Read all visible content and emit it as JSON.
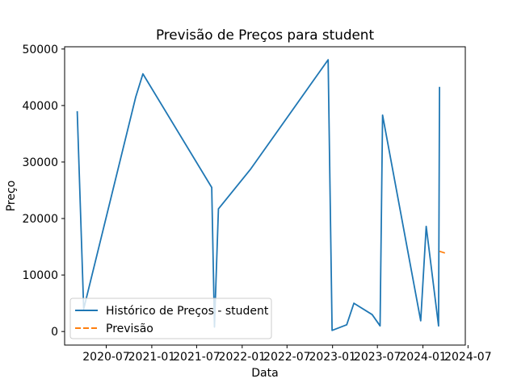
{
  "chart_data": {
    "type": "line",
    "title": "Previsão de Preços para student",
    "xlabel": "Data",
    "ylabel": "Preço",
    "x_axis_type": "date",
    "xlim": [
      "2020-01-15",
      "2024-06-20"
    ],
    "ylim": [
      -2400,
      50400
    ],
    "x_ticks": [
      "2020-07-01",
      "2021-01-01",
      "2021-07-01",
      "2022-01-01",
      "2022-07-01",
      "2023-01-01",
      "2023-07-01",
      "2024-01-01",
      "2024-07-01"
    ],
    "x_tick_labels": [
      "2020-07",
      "2021-01",
      "2021-07",
      "2022-01",
      "2022-07",
      "2023-01",
      "2023-07",
      "2024-01",
      "2024-07"
    ],
    "y_ticks": [
      0,
      10000,
      20000,
      30000,
      40000,
      50000
    ],
    "y_tick_labels": [
      "0",
      "10000",
      "20000",
      "30000",
      "40000",
      "50000"
    ],
    "grid": false,
    "legend_position": "lower-left",
    "series": [
      {
        "name": "Histórico de Preços - student",
        "color": "#1f77b4",
        "style": "solid",
        "x": [
          "2020-03-06",
          "2020-04-01",
          "2020-10-28",
          "2020-11-26",
          "2021-08-31",
          "2021-09-11",
          "2021-09-14",
          "2021-09-27",
          "2022-02-05",
          "2022-12-14",
          "2022-12-30",
          "2023-02-27",
          "2023-03-28",
          "2023-06-10",
          "2023-07-12",
          "2023-07-22",
          "2023-12-23",
          "2024-01-14",
          "2024-03-04",
          "2024-03-08"
        ],
        "y": [
          39000,
          4000,
          41500,
          45600,
          25500,
          800,
          4800,
          21700,
          28800,
          48100,
          200,
          1200,
          5000,
          3000,
          1000,
          38300,
          1900,
          18600,
          1000,
          43300
        ]
      },
      {
        "name": "Previsão",
        "color": "#ff7f0e",
        "style": "dashed",
        "x": [
          "2024-03-08",
          "2024-04-06"
        ],
        "y": [
          14200,
          13800
        ]
      }
    ]
  }
}
